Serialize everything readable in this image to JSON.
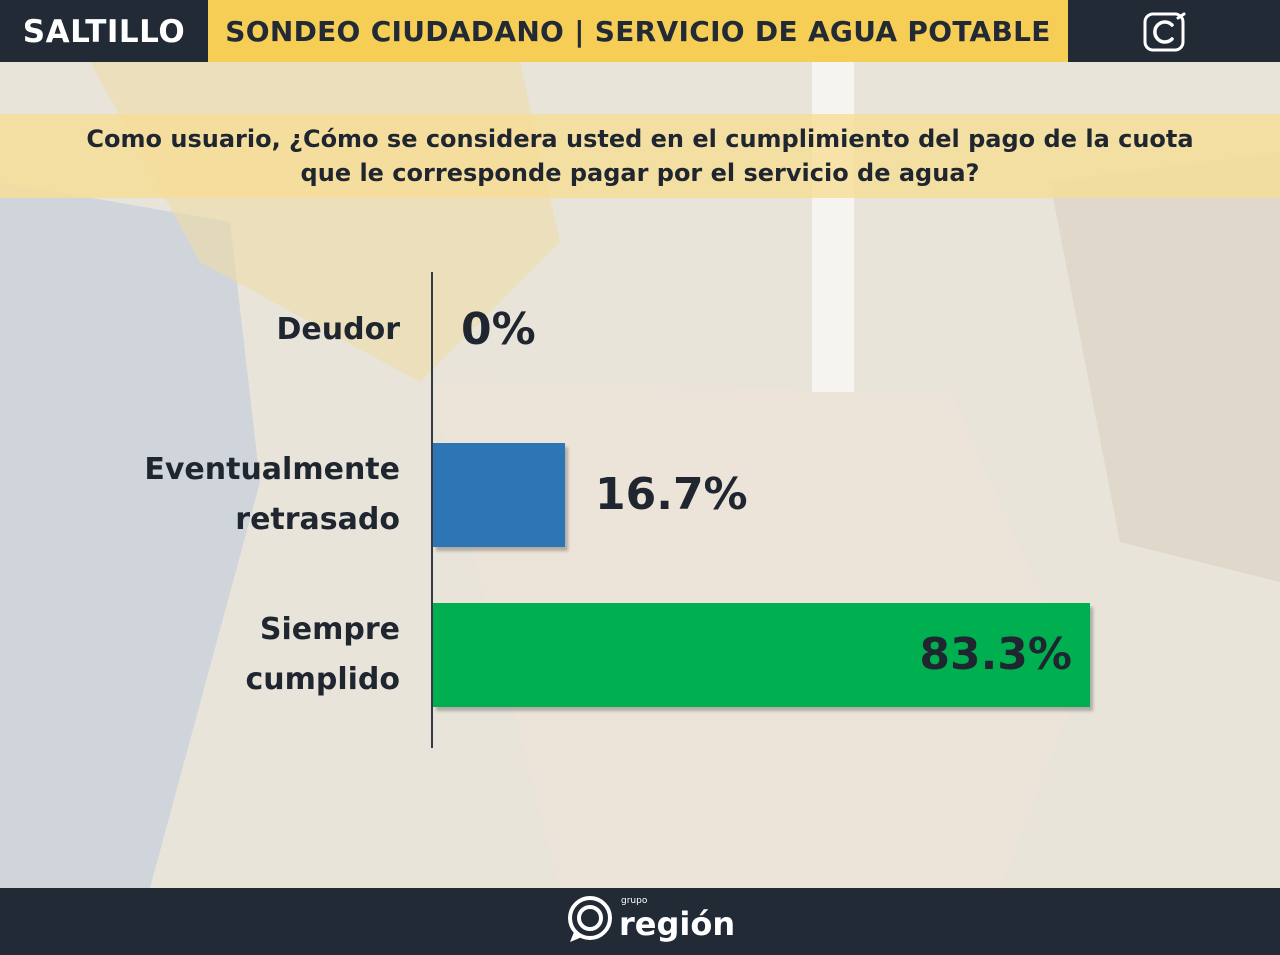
{
  "header": {
    "city": "SALTILLO",
    "title": "SONDEO CIUDADANO | SERVICIO DE AGUA POTABLE",
    "brand_icon": "c-logo-icon"
  },
  "question": {
    "line1": "Como usuario, ¿Cómo se considera usted en el cumplimiento del pago de la cuota",
    "line2": "que le corresponde pagar por el servicio de agua?"
  },
  "chart_data": {
    "type": "bar",
    "orientation": "horizontal",
    "categories": [
      "Deudor",
      "Eventualmente retrasado",
      "Siempre cumplido"
    ],
    "category_lines": [
      [
        "Deudor"
      ],
      [
        "Eventualmente",
        "retrasado"
      ],
      [
        "Siempre",
        "cumplido"
      ]
    ],
    "values": [
      0,
      16.7,
      83.3
    ],
    "value_labels": [
      "0%",
      "16.7%",
      "83.3%"
    ],
    "colors": [
      "#2e75b6",
      "#2e75b6",
      "#00b050"
    ],
    "xlim": [
      0,
      100
    ],
    "grid": false,
    "legend": "none"
  },
  "footer": {
    "small": "grupo",
    "brand": "región",
    "logo_icon": "grupo-region-logo-icon"
  }
}
